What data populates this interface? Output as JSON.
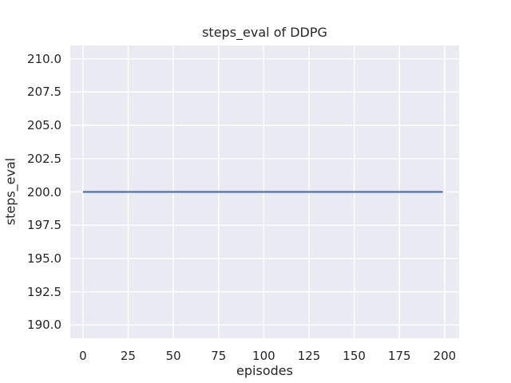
{
  "chart_data": {
    "type": "line",
    "title": "steps_eval of DDPG",
    "xlabel": "episodes",
    "ylabel": "steps_eval",
    "xlim": [
      -7,
      208
    ],
    "ylim": [
      189,
      211
    ],
    "x_ticks": [
      0,
      25,
      50,
      75,
      100,
      125,
      150,
      175,
      200
    ],
    "x_tick_labels": [
      "0",
      "25",
      "50",
      "75",
      "100",
      "125",
      "150",
      "175",
      "200"
    ],
    "y_ticks": [
      190.0,
      192.5,
      195.0,
      197.5,
      200.0,
      202.5,
      205.0,
      207.5,
      210.0
    ],
    "y_tick_labels": [
      "190.0",
      "192.5",
      "195.0",
      "197.5",
      "200.0",
      "202.5",
      "205.0",
      "207.5",
      "210.0"
    ],
    "grid": true,
    "legend": "none",
    "series": [
      {
        "name": "DDPG steps_eval",
        "color": "#4C72B0",
        "constant_value": 200,
        "x_start": 0,
        "x_end": 199,
        "points": [
          [
            0,
            200
          ],
          [
            199,
            200
          ]
        ]
      }
    ],
    "styles": {
      "fig_bg": "#FFFFFF",
      "plot_bg": "#EAEAF2",
      "grid_color": "#FFFFFF",
      "text_color": "#262626"
    }
  }
}
